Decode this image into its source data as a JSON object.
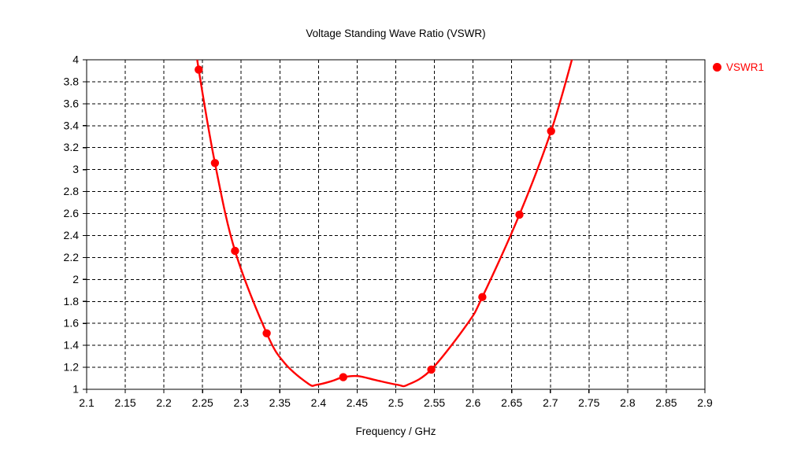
{
  "chart_data": {
    "type": "line",
    "title": "Voltage Standing Wave Ratio (VSWR)",
    "xlabel": "Frequency / GHz",
    "ylabel": "",
    "xlim": [
      2.1,
      2.9
    ],
    "ylim": [
      1,
      4
    ],
    "x_ticks": [
      2.1,
      2.15,
      2.2,
      2.25,
      2.3,
      2.35,
      2.4,
      2.45,
      2.5,
      2.55,
      2.6,
      2.65,
      2.7,
      2.75,
      2.8,
      2.85,
      2.9
    ],
    "y_ticks": [
      1,
      1.2,
      1.4,
      1.6,
      1.8,
      2,
      2.2,
      2.4,
      2.6,
      2.8,
      3,
      3.2,
      3.4,
      3.6,
      3.8,
      4
    ],
    "grid": "dashed",
    "legend_position": "top-right-outside",
    "series": [
      {
        "name": "VSWR1",
        "color": "#ff0000",
        "marker": "filled-circle",
        "points": [
          [
            2.245,
            3.91
          ],
          [
            2.266,
            3.06
          ],
          [
            2.292,
            2.26
          ],
          [
            2.333,
            1.51
          ],
          [
            2.432,
            1.11
          ],
          [
            2.546,
            1.18
          ],
          [
            2.612,
            1.84
          ],
          [
            2.66,
            2.59
          ],
          [
            2.701,
            3.35
          ]
        ],
        "curve_shape": [
          [
            2.2425,
            4.08
          ],
          [
            2.245,
            3.91
          ],
          [
            2.266,
            3.06
          ],
          [
            2.292,
            2.26
          ],
          [
            2.333,
            1.51
          ],
          [
            2.356,
            1.24
          ],
          [
            2.387,
            1.05
          ],
          [
            2.397,
            1.04
          ],
          [
            2.415,
            1.07
          ],
          [
            2.432,
            1.11
          ],
          [
            2.451,
            1.12
          ],
          [
            2.476,
            1.08
          ],
          [
            2.503,
            1.04
          ],
          [
            2.515,
            1.04
          ],
          [
            2.546,
            1.18
          ],
          [
            2.593,
            1.6
          ],
          [
            2.612,
            1.84
          ],
          [
            2.66,
            2.59
          ],
          [
            2.701,
            3.35
          ],
          [
            2.731,
            4.08
          ]
        ]
      }
    ]
  },
  "legend": {
    "items": [
      {
        "label": "VSWR1",
        "color": "#ff0000"
      }
    ]
  },
  "colors": {
    "background": "#ffffff",
    "axis": "#000000",
    "grid": "#000000",
    "text": "#000000",
    "series1": "#ff0000"
  }
}
